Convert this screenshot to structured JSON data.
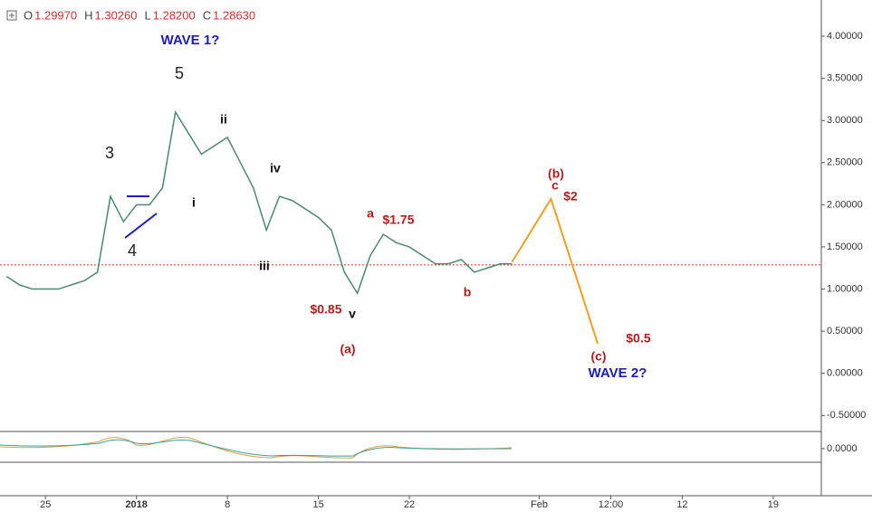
{
  "chart_data": {
    "type": "line",
    "ohlc": [
      {
        "label": "O",
        "value": "1.29970"
      },
      {
        "label": "H",
        "value": "1.30260"
      },
      {
        "label": "L",
        "value": "1.28200"
      },
      {
        "label": "C",
        "value": "1.28630"
      }
    ],
    "xlim": [
      -3.5,
      59.7
    ],
    "xticks": [
      {
        "value": 0,
        "label": "25"
      },
      {
        "value": 7,
        "label": "2018"
      },
      {
        "value": 14,
        "label": "8"
      },
      {
        "value": 21,
        "label": "15"
      },
      {
        "value": 28,
        "label": "22"
      },
      {
        "value": 38,
        "label": "Feb"
      },
      {
        "value": 43.5,
        "label": "12:00"
      },
      {
        "value": 49,
        "label": "12"
      },
      {
        "value": 56,
        "label": "19"
      }
    ],
    "ylim": [
      -0.69,
      4.43
    ],
    "yticks": [
      {
        "value": 4,
        "label": "4.00000"
      },
      {
        "value": 3.5,
        "label": "3.50000"
      },
      {
        "value": 3,
        "label": "3.00000"
      },
      {
        "value": 2.5,
        "label": "2.50000"
      },
      {
        "value": 2,
        "label": "2.00000"
      },
      {
        "value": 1.5,
        "label": "1.50000"
      },
      {
        "value": 1,
        "label": "1.00000"
      },
      {
        "value": 0.5,
        "label": "0.50000"
      },
      {
        "value": 0,
        "label": "0.00000"
      },
      {
        "value": -0.5,
        "label": "-0.50000"
      }
    ],
    "price_line": {
      "value": 1.2863,
      "color": "#d32f2f"
    },
    "series": [
      {
        "color": "#4a8a6e",
        "x": [
          -3,
          -2,
          -1,
          0,
          1,
          2,
          3,
          4,
          5,
          6,
          7,
          8,
          9,
          10,
          11,
          12,
          13,
          14,
          15,
          16,
          17,
          18,
          19,
          20,
          21,
          22,
          23,
          24,
          25,
          26,
          27,
          28,
          29,
          30,
          31,
          32,
          33,
          34,
          35,
          35.9
        ],
        "values": [
          1.15,
          1.05,
          1.0,
          1.0,
          1.0,
          1.05,
          1.1,
          1.2,
          2.1,
          1.8,
          2.0,
          2.0,
          2.2,
          3.1,
          2.85,
          2.6,
          2.7,
          2.8,
          2.5,
          2.2,
          1.7,
          2.1,
          2.05,
          1.95,
          1.85,
          1.7,
          1.2,
          0.95,
          1.4,
          1.65,
          1.55,
          1.5,
          1.4,
          1.3,
          1.3,
          1.35,
          1.2,
          1.25,
          1.3,
          1.3
        ]
      },
      {
        "color": "#f0a020",
        "x": [
          35.9,
          38.9,
          42.5
        ],
        "values": [
          1.32,
          2.07,
          0.35
        ]
      }
    ],
    "indicator_yticks": [
      {
        "value": 0,
        "label": "0.0000"
      }
    ],
    "annotations": [
      {
        "text": "WAVE 1?",
        "color": "#1c1cb8"
      },
      {
        "text": "5",
        "color": "#222"
      },
      {
        "text": "3",
        "color": "#222"
      },
      {
        "text": "4",
        "color": "#222"
      },
      {
        "text": "i",
        "color": "#111"
      },
      {
        "text": "ii",
        "color": "#111"
      },
      {
        "text": "iii",
        "color": "#111"
      },
      {
        "text": "iv",
        "color": "#111"
      },
      {
        "text": "v",
        "color": "#111"
      },
      {
        "text": "a",
        "color": "#b71c1c"
      },
      {
        "text": "$1.75",
        "color": "#b71c1c"
      },
      {
        "text": "$0.85",
        "color": "#b71c1c"
      },
      {
        "text": "(a)",
        "color": "#b71c1c"
      },
      {
        "text": "b",
        "color": "#b71c1c"
      },
      {
        "text": "(b)",
        "color": "#b71c1c"
      },
      {
        "text": "c",
        "color": "#b71c1c"
      },
      {
        "text": "$2",
        "color": "#b71c1c"
      },
      {
        "text": "(c)",
        "color": "#b71c1c"
      },
      {
        "text": "$0.5",
        "color": "#b71c1c"
      },
      {
        "text": "WAVE 2?",
        "color": "#1c1cb8"
      }
    ]
  }
}
